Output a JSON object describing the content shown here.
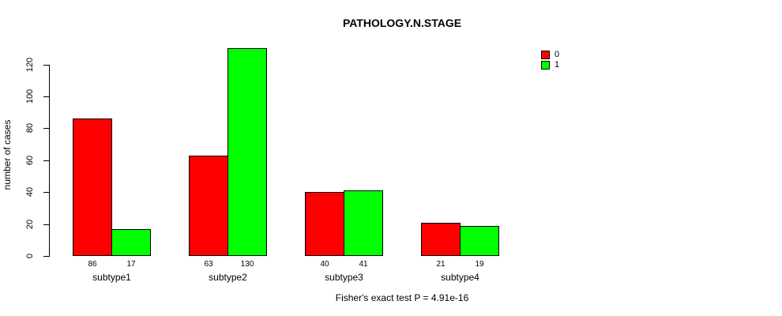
{
  "chart_data": {
    "type": "bar",
    "title": "PATHOLOGY.N.STAGE",
    "ylabel": "number of cases",
    "xlabel": "",
    "categories": [
      "subtype1",
      "subtype2",
      "subtype3",
      "subtype4"
    ],
    "series": [
      {
        "name": "0",
        "color": "#ff0000",
        "values": [
          86,
          63,
          40,
          21
        ]
      },
      {
        "name": "1",
        "color": "#00ff00",
        "values": [
          17,
          130,
          41,
          19
        ]
      }
    ],
    "bar_value_labels": [
      [
        "86",
        "17"
      ],
      [
        "63",
        "130"
      ],
      [
        "40",
        "41"
      ],
      [
        "21",
        "19"
      ]
    ],
    "ylim": [
      0,
      120
    ],
    "yticks": [
      "0",
      "20",
      "40",
      "60",
      "80",
      "100",
      "120"
    ],
    "grid": false,
    "legend_position": "top-right",
    "annotation": "Fisher's exact test P = 4.91e-16"
  }
}
